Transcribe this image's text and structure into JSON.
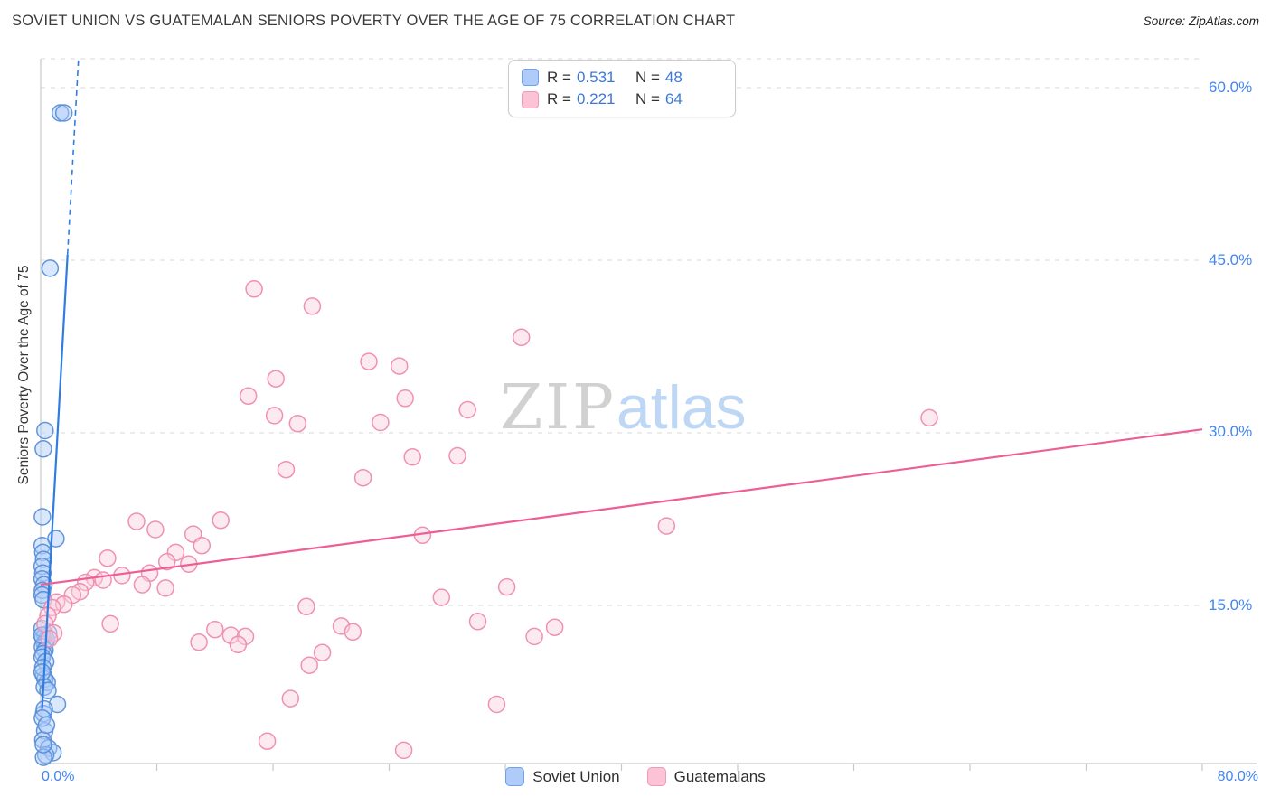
{
  "header": {
    "title": "SOVIET UNION VS GUATEMALAN SENIORS POVERTY OVER THE AGE OF 75 CORRELATION CHART",
    "source": "Source: ZipAtlas.com"
  },
  "watermark": {
    "part1": "ZIP",
    "part2": "atlas"
  },
  "axes": {
    "y_label": "Seniors Poverty Over the Age of 75",
    "y_tick_labels": [
      "60.0%",
      "45.0%",
      "30.0%",
      "15.0%"
    ],
    "x_min_label": "0.0%",
    "x_max_label": "80.0%"
  },
  "legend_box": {
    "rows": [
      {
        "series": "Soviet Union",
        "r_prefix": "R =",
        "r_value": "0.531",
        "n_prefix": "N =",
        "n_value": "48"
      },
      {
        "series": "Guatemalans",
        "r_prefix": "R =",
        "r_value": "0.221",
        "n_prefix": "N =",
        "n_value": "64"
      }
    ]
  },
  "bottom_legend": {
    "items": [
      {
        "label": "Soviet Union"
      },
      {
        "label": "Guatemalans"
      }
    ]
  },
  "colors": {
    "blue_stroke": "#5a8fd8",
    "blue_fill": "#aecbfa",
    "blue_line": "#2f7de1",
    "pink_stroke": "#ef8bae",
    "pink_fill": "#fbd0de",
    "pink_line": "#ed5f94",
    "grid": "#d9d9d9",
    "axis": "#c8c8c8",
    "tick_text": "#4285f4"
  },
  "chart_data": {
    "type": "scatter",
    "title": "Soviet Union vs Guatemalan Seniors Poverty Over the Age of 75",
    "xlabel": "",
    "ylabel": "Seniors Poverty Over the Age of 75",
    "x_axis": {
      "min": 0,
      "max": 80,
      "unit": "%",
      "tick_step": 8
    },
    "y_axis": {
      "min": 0,
      "max": 62.5,
      "unit": "%",
      "gridlines": [
        15,
        30,
        45,
        60
      ]
    },
    "legend_position": "bottom-center",
    "grid": true,
    "series": [
      {
        "name": "Soviet Union",
        "r": 0.531,
        "n": 48,
        "points": [
          [
            1.35,
            57.8
          ],
          [
            1.6,
            57.8
          ],
          [
            0.65,
            44.3
          ],
          [
            0.3,
            30.2
          ],
          [
            0.18,
            28.6
          ],
          [
            0.12,
            22.7
          ],
          [
            1.05,
            20.8
          ],
          [
            0.1,
            20.2
          ],
          [
            0.15,
            19.6
          ],
          [
            0.2,
            19.0
          ],
          [
            0.1,
            18.4
          ],
          [
            0.15,
            17.8
          ],
          [
            0.1,
            17.3
          ],
          [
            0.22,
            16.8
          ],
          [
            0.12,
            16.3
          ],
          [
            0.1,
            15.9
          ],
          [
            0.18,
            15.5
          ],
          [
            0.55,
            12.6
          ],
          [
            0.3,
            12.4
          ],
          [
            0.15,
            12.2
          ],
          [
            0.4,
            12.0
          ],
          [
            0.25,
            11.7
          ],
          [
            0.12,
            11.4
          ],
          [
            0.3,
            11.1
          ],
          [
            0.18,
            10.8
          ],
          [
            0.1,
            10.5
          ],
          [
            0.35,
            10.1
          ],
          [
            0.2,
            8.9
          ],
          [
            0.3,
            8.6
          ],
          [
            0.45,
            8.3
          ],
          [
            0.25,
            7.9
          ],
          [
            0.5,
            7.6
          ],
          [
            1.15,
            6.4
          ],
          [
            0.2,
            5.6
          ],
          [
            0.28,
            4.1
          ],
          [
            0.15,
            3.3
          ],
          [
            0.55,
            2.6
          ],
          [
            0.85,
            2.2
          ],
          [
            0.35,
            2.0
          ],
          [
            0.2,
            1.8
          ],
          [
            0.1,
            13.0
          ],
          [
            0.08,
            12.4
          ],
          [
            0.15,
            9.6
          ],
          [
            0.1,
            9.2
          ],
          [
            0.25,
            6.0
          ],
          [
            0.12,
            5.2
          ],
          [
            0.4,
            4.6
          ],
          [
            0.18,
            2.9
          ]
        ]
      },
      {
        "name": "Guatemalans",
        "r": 0.221,
        "n": 64,
        "points": [
          [
            14.7,
            42.5
          ],
          [
            18.7,
            41.0
          ],
          [
            33.1,
            38.3
          ],
          [
            22.6,
            36.2
          ],
          [
            24.7,
            35.8
          ],
          [
            14.3,
            33.2
          ],
          [
            16.2,
            34.7
          ],
          [
            25.1,
            33.0
          ],
          [
            29.4,
            32.0
          ],
          [
            16.1,
            31.5
          ],
          [
            17.7,
            30.8
          ],
          [
            61.2,
            31.3
          ],
          [
            25.6,
            27.9
          ],
          [
            16.9,
            26.8
          ],
          [
            22.2,
            26.1
          ],
          [
            6.6,
            22.3
          ],
          [
            7.9,
            21.6
          ],
          [
            12.4,
            22.4
          ],
          [
            10.5,
            21.2
          ],
          [
            26.3,
            21.1
          ],
          [
            43.1,
            21.9
          ],
          [
            11.1,
            20.2
          ],
          [
            9.3,
            19.6
          ],
          [
            4.6,
            19.1
          ],
          [
            8.7,
            18.8
          ],
          [
            10.2,
            18.6
          ],
          [
            7.5,
            17.8
          ],
          [
            5.6,
            17.6
          ],
          [
            3.7,
            17.4
          ],
          [
            4.3,
            17.2
          ],
          [
            3.1,
            17.0
          ],
          [
            7.0,
            16.8
          ],
          [
            8.6,
            16.5
          ],
          [
            2.7,
            16.2
          ],
          [
            2.2,
            15.9
          ],
          [
            1.1,
            15.3
          ],
          [
            1.6,
            15.1
          ],
          [
            0.8,
            14.8
          ],
          [
            0.5,
            14.1
          ],
          [
            0.3,
            13.4
          ],
          [
            27.6,
            15.7
          ],
          [
            32.1,
            16.6
          ],
          [
            30.1,
            13.6
          ],
          [
            18.3,
            14.9
          ],
          [
            4.8,
            13.4
          ],
          [
            12.0,
            12.9
          ],
          [
            13.1,
            12.4
          ],
          [
            10.9,
            11.8
          ],
          [
            14.1,
            12.3
          ],
          [
            13.6,
            11.6
          ],
          [
            20.7,
            13.2
          ],
          [
            21.5,
            12.7
          ],
          [
            19.4,
            10.9
          ],
          [
            18.5,
            9.8
          ],
          [
            17.2,
            6.9
          ],
          [
            31.4,
            6.4
          ],
          [
            15.6,
            3.2
          ],
          [
            25.0,
            2.4
          ],
          [
            0.9,
            12.6
          ],
          [
            0.6,
            12.1
          ],
          [
            35.4,
            13.1
          ],
          [
            34.0,
            12.3
          ],
          [
            28.7,
            28.0
          ],
          [
            23.4,
            30.9
          ]
        ]
      }
    ],
    "trend_lines": [
      {
        "series": "Soviet Union",
        "solid": [
          [
            0.1,
            6.0
          ],
          [
            1.85,
            45.5
          ]
        ],
        "dashed": [
          [
            1.85,
            45.5
          ],
          [
            2.6,
            62.4
          ]
        ]
      },
      {
        "series": "Guatemalans",
        "solid": [
          [
            0.0,
            16.8
          ],
          [
            80.0,
            30.3
          ]
        ]
      }
    ]
  }
}
